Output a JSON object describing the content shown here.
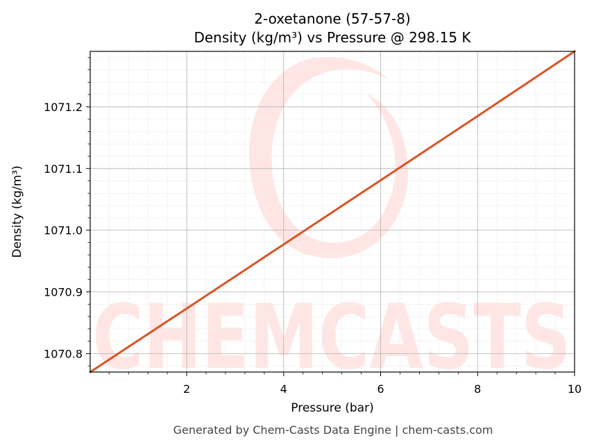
{
  "chart_data": {
    "type": "line",
    "title_line1": "2-oxetanone (57-57-8)",
    "title_line2": "Density (kg/m³) vs Pressure @ 298.15 K",
    "xlabel": "Pressure (bar)",
    "ylabel": "Density (kg/m³)",
    "xlim": [
      0.01,
      10
    ],
    "ylim": [
      1070.77,
      1071.29
    ],
    "x_ticks": [
      2,
      4,
      6,
      8,
      10
    ],
    "x_tick_labels": [
      "2",
      "4",
      "6",
      "8",
      "10"
    ],
    "y_ticks": [
      1070.8,
      1070.9,
      1071.0,
      1071.1,
      1071.2
    ],
    "y_tick_labels": [
      "1070.8",
      "1070.9",
      "1071.0",
      "1071.1",
      "1071.2"
    ],
    "grid": true,
    "minor_grid": true,
    "series": [
      {
        "color": "#d95325",
        "x": [
          0.01,
          2,
          4,
          6,
          8,
          10
        ],
        "y": [
          1070.77,
          1070.873,
          1070.977,
          1071.081,
          1071.185,
          1071.29
        ]
      }
    ]
  },
  "watermark": {
    "text": "CHEMCASTS",
    "color": "#ffe6e4"
  },
  "footer": "Generated by Chem-Casts Data Engine | chem-casts.com"
}
